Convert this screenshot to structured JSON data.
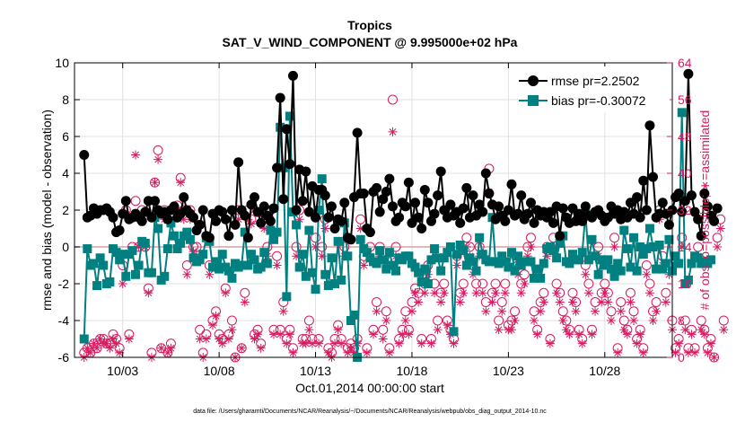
{
  "chart_data": {
    "type": "line",
    "title": "Tropics",
    "subtitle": "SAT_V_WIND_COMPONENT @ 9.995000e+02 hPa",
    "xlabel": "Oct.01,2014 00:00:00 start",
    "ylabel": "rmse and bias (model - observation)",
    "y2label": "# of obs: o=possible; ∗=assimilated",
    "footnote": "data file: /Users/gharamti/Documents/NCAR/Reanalysis/~/Documents/NCAR/Reanalysis/webpub/obs_diag_output_2014-10.nc",
    "xlim": [
      0.5,
      31.5
    ],
    "ylim": [
      -6,
      10
    ],
    "y2lim": [
      0,
      64
    ],
    "xticks": [
      3,
      8,
      13,
      18,
      23,
      28
    ],
    "xtick_labels": [
      "10/03",
      "10/08",
      "10/13",
      "10/18",
      "10/23",
      "10/28"
    ],
    "yticks": [
      -6,
      -4,
      -2,
      0,
      2,
      4,
      6,
      8,
      10
    ],
    "ytick_labels": [
      "-6",
      "-4",
      "-2",
      "0",
      "2",
      "4",
      "6",
      "8",
      "10"
    ],
    "y2ticks": [
      0,
      8,
      16,
      24,
      32,
      40,
      48,
      56,
      64
    ],
    "y2tick_labels": [
      "0",
      "8",
      "16",
      "24",
      "32",
      "40",
      "48",
      "56",
      "64"
    ],
    "grid": true,
    "legend_position": "top-right",
    "colors": {
      "rmse": "#000000",
      "bias": "#008080",
      "obs": "#d81b60",
      "zero_line": "#d9a0a0",
      "grid": "#e0e0e0"
    },
    "series": [
      {
        "name": "rmse pr=2.2502",
        "marker": "circle",
        "values": [
          5.0,
          1.6,
          1.7,
          2.1,
          1.8,
          2.0,
          2.0,
          2.1,
          1.9,
          1.6,
          0.8,
          0.9,
          1.8,
          2.5,
          1.5,
          1.6,
          1.8,
          1.6,
          1.4,
          1.9,
          2.5,
          1.6,
          2.5,
          2.0,
          1.8,
          1.9,
          1.5,
          2.0,
          2.2,
          1.6,
          1.8,
          2.7,
          2.0,
          1.8,
          1.6,
          0.9,
          1.2,
          2.0,
          0.6,
          0.5,
          1.8,
          1.4,
          2.0,
          1.9,
          1.5,
          0.6,
          2.0,
          1.2,
          4.6,
          2.0,
          1.7,
          0.5,
          2.3,
          2.7,
          1.9,
          1.3,
          2.2,
          1.7,
          1.4,
          2.1,
          4.3,
          8.1,
          2.6,
          6.4,
          4.5,
          9.3,
          2.0,
          4.2,
          2.5,
          4.1,
          1.9,
          3.3,
          1.6,
          3.1,
          3.1,
          2.8,
          1.6,
          2.2,
          1.0,
          1.5,
          1.4,
          2.4,
          0.5,
          0.4,
          2.7,
          6.2,
          2.9,
          2.9,
          1.0,
          0.8,
          3.0,
          3.2,
          1.9,
          2.6,
          3.0,
          3.7,
          2.2,
          1.4,
          1.6,
          2.4,
          2.2,
          3.5,
          1.3,
          2.4,
          1.6,
          1.0,
          3.1,
          2.4,
          1.4,
          1.8,
          2.8,
          4.1,
          2.0,
          1.6,
          2.3,
          1.7,
          1.9,
          1.3,
          2.1,
          3.2,
          1.6,
          2.8,
          1.7,
          2.3,
          1.9,
          4.0,
          2.9,
          2.3,
          1.5,
          2.2,
          1.7,
          1.4,
          2.0,
          3.4,
          1.7,
          1.8,
          2.8,
          1.5,
          1.8,
          2.4,
          1.3,
          2.0,
          1.7,
          1.9,
          1.6,
          1.9,
          1.3,
          2.2,
          0.6,
          2.1,
          1.6,
          1.3,
          2.1,
          1.4,
          1.8,
          1.4,
          2.2,
          1.7,
          1.6,
          1.9,
          2.0,
          1.7,
          1.4,
          1.6,
          2.2,
          1.8,
          2.0,
          1.5,
          1.9,
          1.6,
          2.4,
          1.8,
          2.7,
          1.6,
          3.6,
          2.0,
          6.6,
          3.8,
          1.6,
          1.8,
          2.4,
          1.8,
          1.2,
          2.0,
          2.7,
          2.9,
          1.9,
          2.5,
          9.4,
          2.8,
          1.9,
          1.5,
          0.6,
          2.9,
          2.2,
          1.7,
          1.4,
          2.1
        ]
      },
      {
        "name": "bias pr=-0.30072",
        "marker": "square",
        "values": [
          -5.0,
          -0.1,
          -1.0,
          -0.9,
          -2.1,
          -0.6,
          -1.0,
          -2.0,
          -1.9,
          -0.1,
          -0.3,
          -0.7,
          -0.4,
          -1.6,
          -0.4,
          -0.2,
          -1.5,
          -1.0,
          0.3,
          0.2,
          -1.4,
          -1.4,
          1.6,
          1.0,
          -1.8,
          -1.6,
          -0.1,
          1.3,
          0.6,
          -0.1,
          0.2,
          0.6,
          0.8,
          0.4,
          -0.6,
          -0.8,
          -0.7,
          -0.4,
          0.5,
          0.3,
          -1.1,
          -0.8,
          -1.2,
          -0.4,
          -1.1,
          -1.3,
          -1.7,
          -0.9,
          -1.1,
          -1.0,
          0.8,
          -1.0,
          -0.4,
          -0.7,
          -1.2,
          -1.1,
          -0.3,
          -0.9,
          0.9,
          0.4,
          0.8,
          6.5,
          4.3,
          -2.7,
          7.1,
          1.9,
          1.2,
          -1.1,
          -0.4,
          -1.6,
          0.9,
          -1.4,
          -2.3,
          2.0,
          3.7,
          -1.5,
          -2.1,
          -0.6,
          -2.0,
          0.3,
          -1.8,
          1.3,
          -0.5,
          -4.0,
          -3.7,
          -6.0,
          0.4,
          -0.1,
          -0.3,
          -0.6,
          -0.8,
          -0.9,
          -0.2,
          -0.7,
          -1.2,
          -0.3,
          -1.0,
          -1.3,
          -0.6,
          -0.7,
          -0.5,
          -0.5,
          -0.9,
          -1.1,
          -1.4,
          -1.9,
          -1.2,
          -2.0,
          -0.7,
          -0.1,
          -0.6,
          -1.3,
          -0.6,
          -0.3,
          0.0,
          -4.6,
          -0.4,
          0.1,
          -0.2,
          -1.0,
          -0.6,
          -0.8,
          -1.3,
          0.5,
          -0.4,
          -0.7,
          -0.8,
          1.6,
          -0.8,
          -0.9,
          -0.5,
          -0.8,
          -1.1,
          -0.3,
          -1.3,
          -0.5,
          -1.0,
          -0.8,
          -0.8,
          -0.8,
          -1.7,
          -1.2,
          -1.7,
          -0.9,
          -0.1,
          0.0,
          -0.2,
          -0.6,
          0.2,
          0.6,
          -0.8,
          -0.9,
          -0.4,
          -0.7,
          -0.7,
          -0.3,
          1.8,
          -0.7,
          0.4,
          -0.5,
          -1.5,
          -0.7,
          -1.0,
          -0.7,
          -1.2,
          -1.6,
          -0.9,
          -1.3,
          0.9,
          -0.1,
          -1.1,
          0.5,
          -1.3,
          0.0,
          -0.4,
          -0.1,
          1.0,
          0.0,
          -1.2,
          0.1,
          -1.2,
          -0.9,
          0.4,
          -1.3,
          -0.5,
          -0.9,
          7.3,
          -2.0,
          -1.8,
          -0.9,
          -0.5,
          -0.6,
          -0.9,
          -0.8,
          -0.9,
          -0.7
        ]
      },
      {
        "name": "possible",
        "axis": "right",
        "marker": "circle-open",
        "values": [
          1,
          2,
          1,
          3,
          2,
          4,
          4,
          3,
          3,
          5,
          4,
          2,
          20,
          32,
          5,
          24,
          34,
          24,
          32,
          24,
          15,
          1,
          38,
          45,
          2,
          32,
          1,
          3,
          31,
          33,
          39,
          32,
          20,
          32,
          24,
          24,
          6,
          1,
          5,
          20,
          8,
          10,
          5,
          4,
          15,
          5,
          8,
          0,
          32,
          2,
          14,
          32,
          30,
          5,
          6,
          3,
          30,
          24,
          32,
          6,
          22,
          6,
          12,
          4,
          6,
          2,
          24,
          32,
          4,
          4,
          8,
          4,
          26,
          4,
          24,
          30,
          2,
          1,
          4,
          7,
          4,
          24,
          2,
          3,
          2,
          4,
          30,
          22,
          2,
          24,
          6,
          12,
          24,
          6,
          10,
          2,
          56,
          24,
          4,
          6,
          10,
          6,
          12,
          15,
          14,
          4,
          16,
          20,
          4,
          16,
          8,
          14,
          16,
          8,
          6,
          4,
          22,
          14,
          16,
          26,
          24,
          20,
          16,
          24,
          16,
          12,
          41,
          14,
          16,
          8,
          12,
          16,
          7,
          8,
          10,
          20,
          16,
          18,
          24,
          26,
          10,
          6,
          12,
          14,
          24,
          4,
          26,
          16,
          14,
          10,
          8,
          6,
          14,
          12,
          6,
          4,
          20,
          16,
          6,
          12,
          24,
          14,
          16,
          14,
          10,
          26,
          2,
          12,
          8,
          6,
          14,
          10,
          4,
          6,
          2,
          20,
          16,
          10,
          12,
          32,
          22,
          14,
          20,
          8,
          2,
          4,
          26,
          8,
          2,
          6,
          2,
          24,
          8,
          6,
          2,
          4,
          0,
          26,
          30,
          8
        ]
      },
      {
        "name": "assimilated",
        "axis": "right",
        "marker": "star",
        "values": [
          0,
          2,
          1,
          3,
          2,
          4,
          3,
          3,
          2,
          4,
          3,
          1,
          16,
          31,
          4,
          23,
          44,
          24,
          30,
          24,
          14,
          0,
          38,
          43,
          2,
          30,
          1,
          2,
          30,
          32,
          38,
          30,
          18,
          30,
          23,
          22,
          4,
          0,
          4,
          18,
          7,
          9,
          4,
          3,
          14,
          4,
          6,
          0,
          30,
          2,
          12,
          30,
          29,
          4,
          5,
          2,
          28,
          22,
          30,
          5,
          20,
          5,
          10,
          3,
          5,
          1,
          22,
          30,
          3,
          3,
          6,
          3,
          24,
          3,
          22,
          28,
          1,
          0,
          3,
          6,
          3,
          22,
          1,
          2,
          1,
          3,
          28,
          20,
          1,
          22,
          5,
          10,
          22,
          4,
          8,
          1,
          49,
          22,
          3,
          5,
          8,
          5,
          10,
          14,
          12,
          3,
          14,
          18,
          3,
          14,
          6,
          12,
          14,
          7,
          5,
          3,
          20,
          12,
          14,
          24,
          22,
          18,
          14,
          22,
          14,
          10,
          36,
          12,
          14,
          6,
          10,
          14,
          6,
          6,
          8,
          18,
          14,
          16,
          22,
          24,
          8,
          5,
          10,
          12,
          22,
          3,
          24,
          14,
          12,
          8,
          6,
          5,
          12,
          10,
          5,
          3,
          18,
          14,
          5,
          10,
          22,
          12,
          14,
          12,
          8,
          24,
          1,
          10,
          6,
          5,
          12,
          8,
          3,
          5,
          1,
          18,
          14,
          8,
          10,
          30,
          20,
          12,
          18,
          6,
          1,
          3,
          24,
          6,
          1,
          5,
          1,
          22,
          6,
          5,
          1,
          3,
          0,
          24,
          28,
          6
        ]
      }
    ]
  },
  "legend": {
    "rmse_label": "rmse pr=2.2502",
    "bias_label": "bias pr=-0.30072"
  }
}
